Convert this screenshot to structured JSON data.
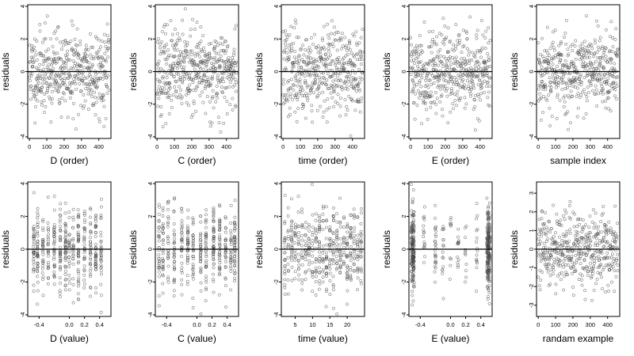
{
  "chart_data": [
    {
      "type": "scatter",
      "xlabel": "D (order)",
      "ylabel": "residuals",
      "xlim": [
        -10,
        470
      ],
      "ylim": [
        -4.1,
        4.1
      ],
      "xticks": [
        0,
        100,
        200,
        300,
        400
      ],
      "xtick_labels": [
        "0",
        "100",
        "200",
        "300",
        "400"
      ],
      "yticks": [
        -4,
        -2,
        0,
        2,
        4
      ],
      "ytick_labels": [
        "-4",
        "-2",
        "0",
        "2",
        "4"
      ],
      "zero_line": true,
      "pattern": {
        "kind": "order",
        "n": 460,
        "sd": 1.25,
        "seed": 11
      }
    },
    {
      "type": "scatter",
      "xlabel": "C (order)",
      "ylabel": "residuals",
      "xlim": [
        -10,
        470
      ],
      "ylim": [
        -4.1,
        4.1
      ],
      "xticks": [
        0,
        100,
        200,
        300,
        400
      ],
      "xtick_labels": [
        "0",
        "100",
        "200",
        "300",
        "400"
      ],
      "yticks": [
        -4,
        -2,
        0,
        2,
        4
      ],
      "ytick_labels": [
        "-4",
        "-2",
        "0",
        "2",
        "4"
      ],
      "zero_line": true,
      "pattern": {
        "kind": "order",
        "n": 460,
        "sd": 1.25,
        "seed": 23
      }
    },
    {
      "type": "scatter",
      "xlabel": "time (order)",
      "ylabel": "residuals",
      "xlim": [
        -10,
        470
      ],
      "ylim": [
        -4.1,
        4.1
      ],
      "xticks": [
        0,
        100,
        200,
        300,
        400
      ],
      "xtick_labels": [
        "0",
        "100",
        "200",
        "300",
        "400"
      ],
      "yticks": [
        -4,
        -2,
        0,
        2,
        4
      ],
      "ytick_labels": [
        "-4",
        "-2",
        "0",
        "2",
        "4"
      ],
      "zero_line": true,
      "pattern": {
        "kind": "order",
        "n": 460,
        "sd": 1.3,
        "seed": 37
      }
    },
    {
      "type": "scatter",
      "xlabel": "E (order)",
      "ylabel": "residuals",
      "xlim": [
        -10,
        470
      ],
      "ylim": [
        -4.1,
        4.1
      ],
      "xticks": [
        0,
        100,
        200,
        300,
        400
      ],
      "xtick_labels": [
        "0",
        "100",
        "200",
        "300",
        "400"
      ],
      "yticks": [
        -4,
        -2,
        0,
        2,
        4
      ],
      "ytick_labels": [
        "-4",
        "-2",
        "0",
        "2",
        "4"
      ],
      "zero_line": true,
      "pattern": {
        "kind": "order",
        "n": 460,
        "sd": 1.25,
        "seed": 41
      }
    },
    {
      "type": "scatter",
      "xlabel": "sample index",
      "ylabel": "residuals",
      "xlim": [
        -10,
        470
      ],
      "ylim": [
        -4.1,
        4.1
      ],
      "xticks": [
        0,
        100,
        200,
        300,
        400
      ],
      "xtick_labels": [
        "0",
        "100",
        "200",
        "300",
        "400"
      ],
      "yticks": [
        -4,
        -2,
        0,
        2,
        4
      ],
      "ytick_labels": [
        "-4",
        "-2",
        "0",
        "2",
        "4"
      ],
      "zero_line": true,
      "pattern": {
        "kind": "order",
        "n": 460,
        "sd": 1.25,
        "seed": 53
      }
    },
    {
      "type": "scatter",
      "xlabel": "D (value)",
      "ylabel": "residuals",
      "xlim": [
        -0.55,
        0.55
      ],
      "ylim": [
        -4.1,
        4.1
      ],
      "xticks": [
        -0.4,
        0,
        0.2,
        0.4
      ],
      "xtick_labels": [
        "-0.4",
        "0.0",
        "0.2",
        "0.4"
      ],
      "yticks": [
        -4,
        -2,
        0,
        2,
        4
      ],
      "ytick_labels": [
        "-4",
        "-2",
        "0",
        "2",
        "4"
      ],
      "zero_line": true,
      "pattern": {
        "kind": "levels",
        "levels": [
          -0.47,
          -0.42,
          -0.35,
          -0.28,
          -0.2,
          -0.12,
          -0.05,
          0.0,
          0.05,
          0.12,
          0.2,
          0.28,
          0.35,
          0.42
        ],
        "n": 460,
        "sd": 1.3,
        "seed": 61
      }
    },
    {
      "type": "scatter",
      "xlabel": "C (value)",
      "ylabel": "residuals",
      "xlim": [
        -0.55,
        0.55
      ],
      "ylim": [
        -4.1,
        4.1
      ],
      "xticks": [
        -0.4,
        0,
        0.2,
        0.4
      ],
      "xtick_labels": [
        "-0.4",
        "0.0",
        "0.2",
        "0.4"
      ],
      "yticks": [
        -4,
        -2,
        0,
        2,
        4
      ],
      "ytick_labels": [
        "-4",
        "-2",
        "0",
        "2",
        "4"
      ],
      "zero_line": true,
      "pattern": {
        "kind": "levels",
        "levels": [
          -0.5,
          -0.45,
          -0.38,
          -0.3,
          -0.2,
          -0.12,
          -0.05,
          0.05,
          0.12,
          0.22,
          0.3,
          0.38,
          0.45,
          0.5
        ],
        "n": 460,
        "sd": 1.3,
        "seed": 71
      }
    },
    {
      "type": "scatter",
      "xlabel": "time (value)",
      "ylabel": "residuals",
      "xlim": [
        1,
        25
      ],
      "ylim": [
        -4.1,
        4.1
      ],
      "xticks": [
        5,
        10,
        15,
        20
      ],
      "xtick_labels": [
        "5",
        "10",
        "15",
        "20"
      ],
      "yticks": [
        -4,
        -2,
        0,
        2,
        4
      ],
      "ytick_labels": [
        "-4",
        "-2",
        "0",
        "2",
        "4"
      ],
      "zero_line": true,
      "pattern": {
        "kind": "levels",
        "levels": [
          2,
          3,
          4,
          5,
          6,
          7,
          8,
          9,
          10,
          11,
          12,
          13,
          14,
          15,
          16,
          17,
          18,
          19,
          20,
          21,
          22,
          23,
          24
        ],
        "n": 460,
        "sd": 1.3,
        "seed": 83
      }
    },
    {
      "type": "scatter",
      "xlabel": "E (value)",
      "ylabel": "residuals",
      "xlim": [
        -0.55,
        0.55
      ],
      "ylim": [
        -4.1,
        4.1
      ],
      "xticks": [
        -0.4,
        0,
        0.2,
        0.4
      ],
      "xtick_labels": [
        "-0.4",
        "0.0",
        "0.2",
        "0.4"
      ],
      "yticks": [
        -4,
        -2,
        0,
        2,
        4
      ],
      "ytick_labels": [
        "-4",
        "-2",
        "0",
        "2",
        "4"
      ],
      "zero_line": true,
      "pattern": {
        "kind": "edges",
        "levels": [
          -0.5,
          0.5
        ],
        "inner": [
          -0.35,
          -0.2,
          -0.1,
          0.0,
          0.1,
          0.2,
          0.35
        ],
        "n": 460,
        "sd": 1.3,
        "seed": 97
      }
    },
    {
      "type": "scatter",
      "xlabel": "randam example",
      "ylabel": "residuals",
      "xlim": [
        -10,
        470
      ],
      "ylim": [
        -3.6,
        3.6
      ],
      "xticks": [
        0,
        100,
        200,
        300,
        400
      ],
      "xtick_labels": [
        "0",
        "100",
        "200",
        "300",
        "400"
      ],
      "yticks": [
        -3,
        -2,
        -1,
        0,
        1,
        2,
        3
      ],
      "ytick_labels": [
        "-3",
        "-2",
        "-1",
        "0",
        "1",
        "2",
        "3"
      ],
      "zero_line": true,
      "pattern": {
        "kind": "order",
        "n": 460,
        "sd": 1.0,
        "seed": 101
      }
    }
  ]
}
